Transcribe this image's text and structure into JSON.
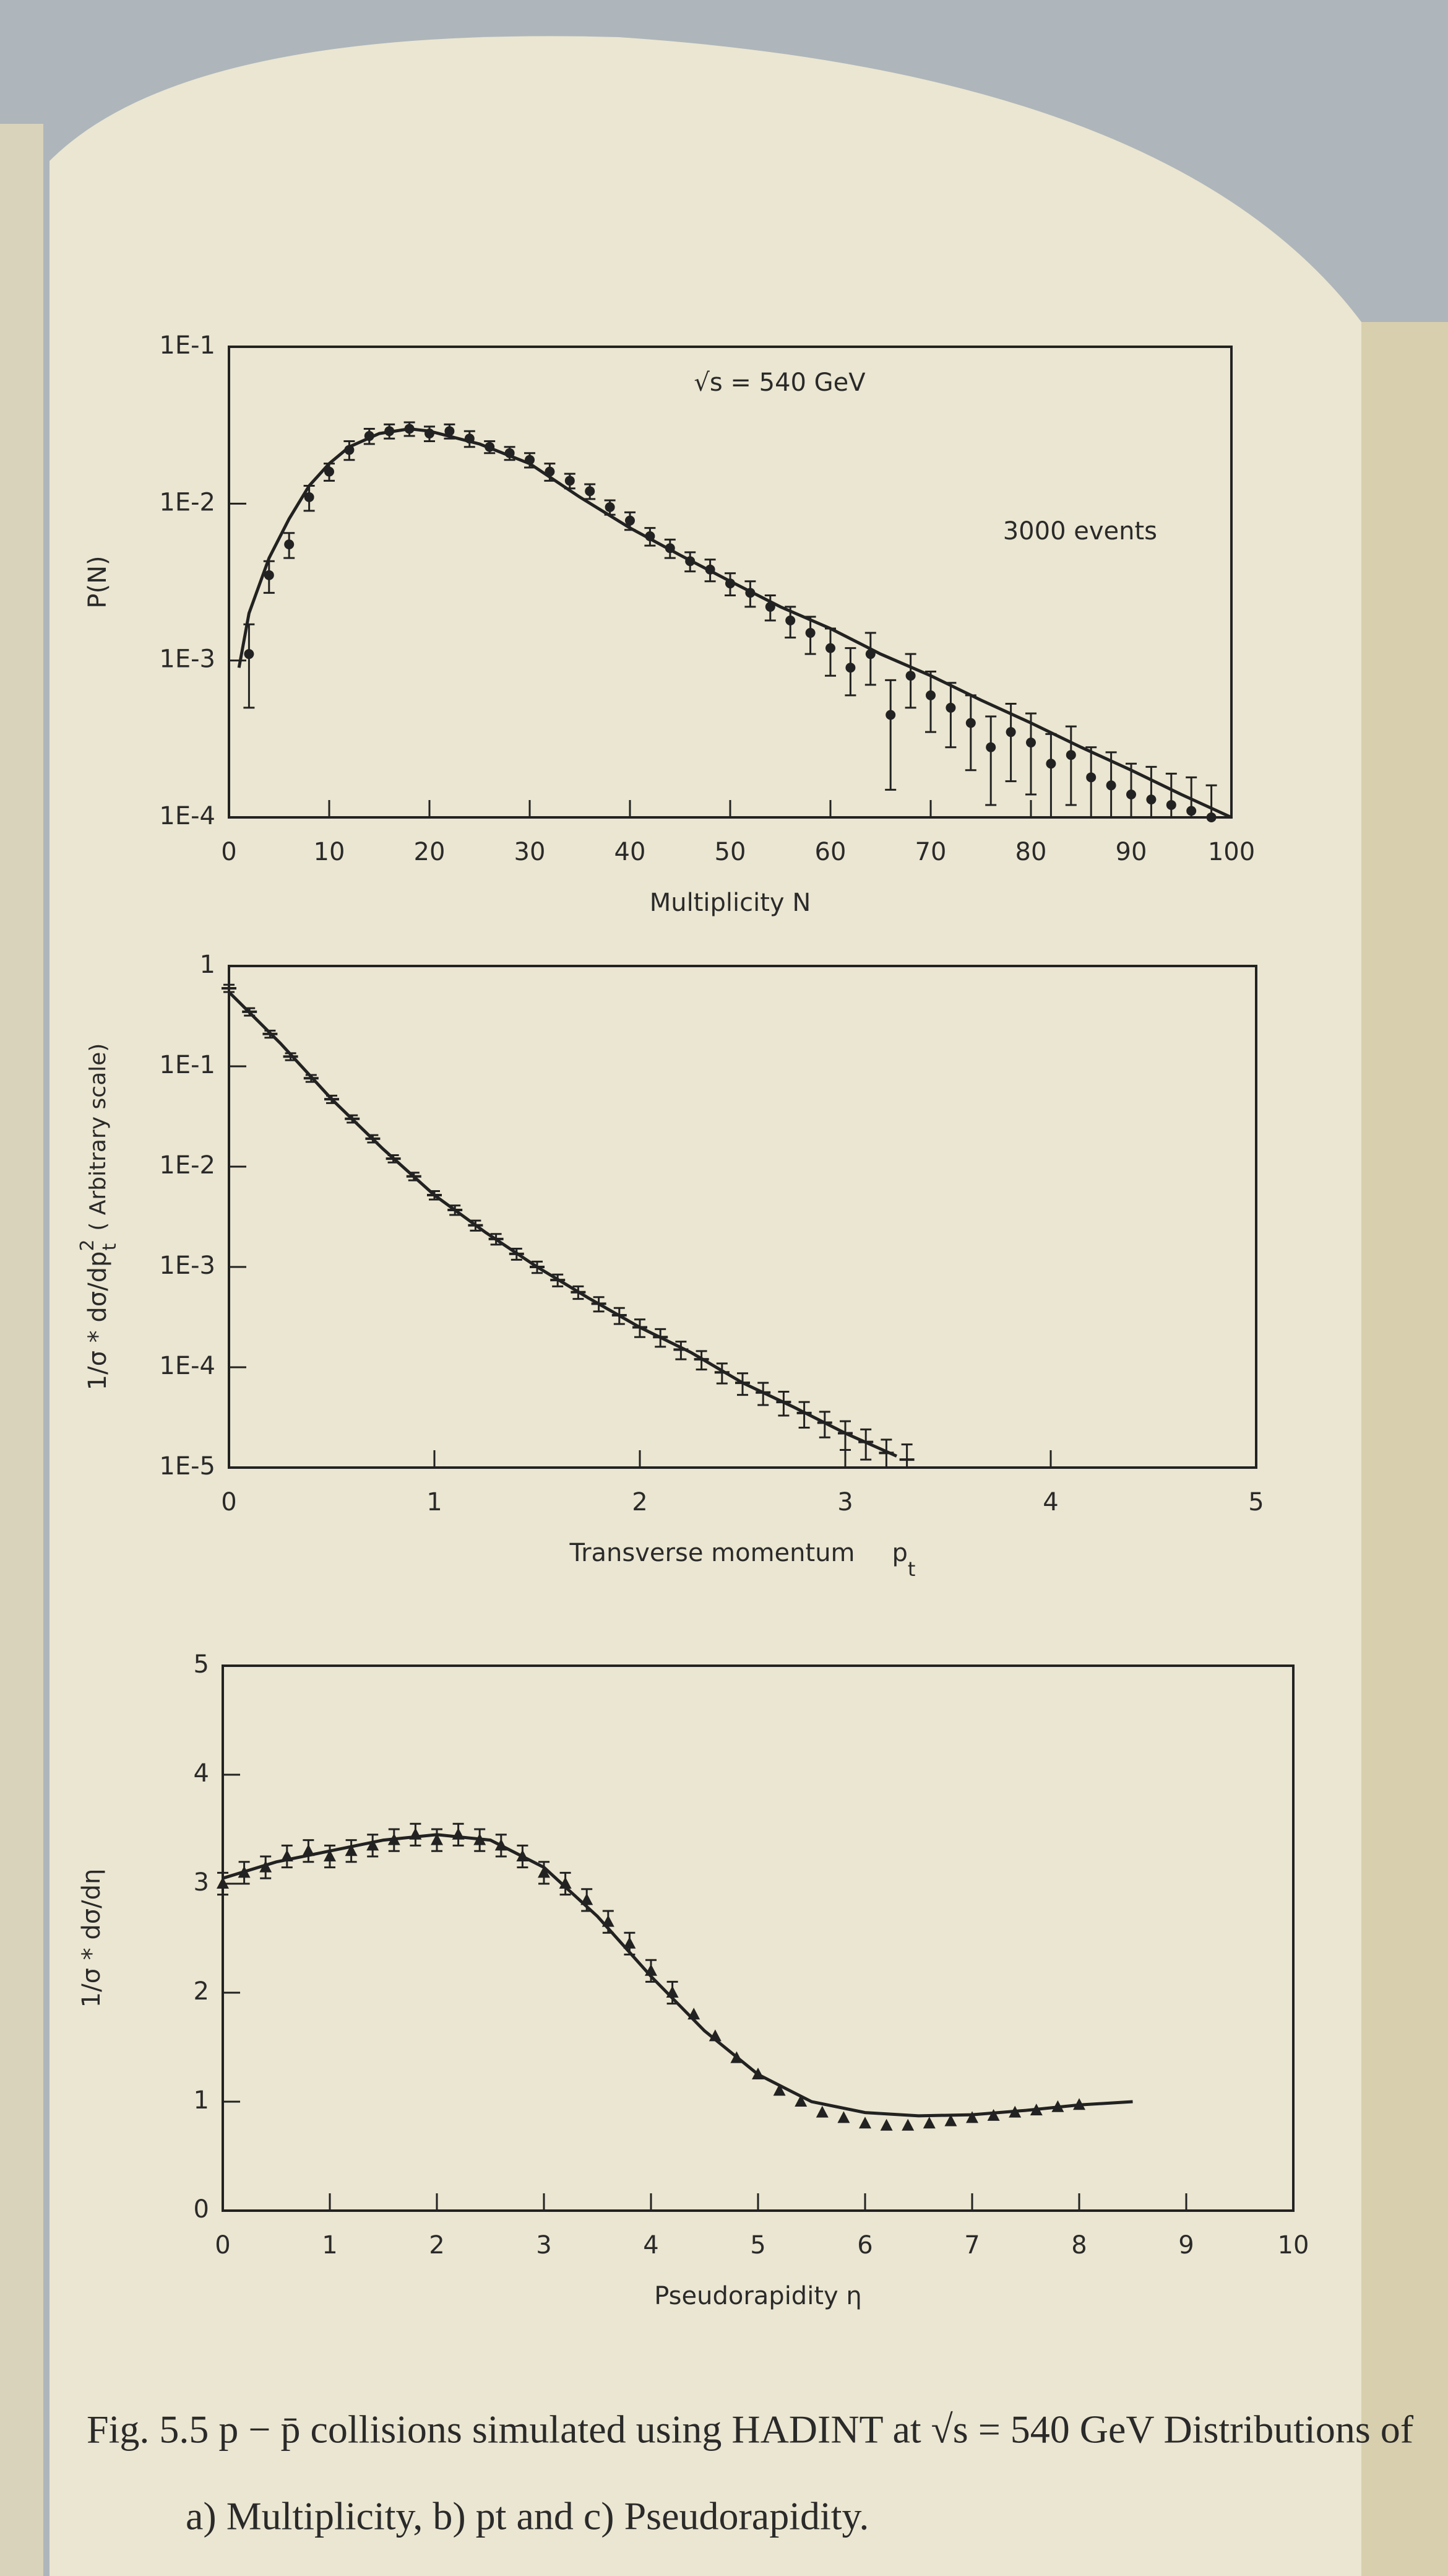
{
  "chart_data": [
    {
      "type": "scatter",
      "log_y": true,
      "title": "√s = 540 GeV",
      "note": "3000 events",
      "x_label": "Multiplicity N",
      "y_label": "P(N)",
      "color": "#222222",
      "marker": "circle",
      "xlim": [
        0,
        100
      ],
      "ylim": [
        0.0001,
        0.1
      ],
      "xticks": [
        0,
        10,
        20,
        30,
        40,
        50,
        60,
        70,
        80,
        90,
        100
      ],
      "yticks": [
        {
          "value": 0.1,
          "label": "1E-1"
        },
        {
          "value": 0.01,
          "label": "1E-2"
        },
        {
          "value": 0.001,
          "label": "1E-3"
        },
        {
          "value": 0.0001,
          "label": "1E-4"
        }
      ],
      "points": {
        "x": [
          2,
          4,
          6,
          8,
          10,
          12,
          14,
          16,
          18,
          20,
          22,
          24,
          26,
          28,
          30,
          32,
          34,
          36,
          38,
          40,
          42,
          44,
          46,
          48,
          50,
          52,
          54,
          56,
          58,
          60,
          62,
          64,
          66,
          68,
          70,
          72,
          74,
          76,
          78,
          80,
          82,
          84,
          86,
          88,
          90,
          92,
          94,
          96,
          98
        ],
        "y": [
          0.0011,
          0.0035,
          0.0055,
          0.011,
          0.016,
          0.022,
          0.027,
          0.029,
          0.03,
          0.028,
          0.029,
          0.026,
          0.023,
          0.021,
          0.019,
          0.016,
          0.014,
          0.012,
          0.0095,
          0.0078,
          0.0062,
          0.0052,
          0.0043,
          0.0038,
          0.0031,
          0.0027,
          0.0022,
          0.0018,
          0.0015,
          0.0012,
          0.0009,
          0.0011,
          0.00045,
          0.0008,
          0.0006,
          0.0005,
          0.0004,
          0.00028,
          0.00035,
          0.0003,
          0.00022,
          0.00025,
          0.00018,
          0.00016,
          0.00014,
          0.00013,
          0.00012,
          0.00011,
          0.0001
        ],
        "errors": [
          0.0006,
          0.0008,
          0.001,
          0.002,
          0.002,
          0.003,
          0.003,
          0.003,
          0.003,
          0.003,
          0.003,
          0.003,
          0.002,
          0.002,
          0.002,
          0.002,
          0.0015,
          0.0013,
          0.001,
          0.001,
          0.0008,
          0.0007,
          0.0006,
          0.0006,
          0.0005,
          0.0005,
          0.0004,
          0.0004,
          0.0004,
          0.0004,
          0.0003,
          0.0004,
          0.0003,
          0.0003,
          0.00025,
          0.00022,
          0.0002,
          0.00016,
          0.00018,
          0.00016,
          0.00012,
          0.00013,
          0.0001,
          0.0001,
          8e-05,
          8e-05,
          7e-05,
          7e-05,
          6e-05
        ]
      },
      "curve": {
        "x": [
          1,
          2,
          4,
          6,
          8,
          10,
          12,
          15,
          18,
          20,
          25,
          30,
          35,
          40,
          45,
          50,
          55,
          60,
          65,
          70,
          75,
          80,
          85,
          90,
          95,
          100
        ],
        "y": [
          0.0009,
          0.002,
          0.0045,
          0.008,
          0.013,
          0.018,
          0.023,
          0.028,
          0.03,
          0.029,
          0.024,
          0.018,
          0.011,
          0.007,
          0.0047,
          0.0032,
          0.0022,
          0.0016,
          0.0011,
          0.0008,
          0.00056,
          0.0004,
          0.00028,
          0.0002,
          0.00014,
          0.0001
        ]
      }
    },
    {
      "type": "scatter",
      "log_y": true,
      "x_label": "Transverse momentum",
      "x_label_symbol": "p",
      "x_label_subscript": "t",
      "y_label": "1/σ * dσ/dp",
      "y_label_superscript": "2",
      "y_label_subscript": "t",
      "y_label_note": "( Arbitrary scale)",
      "color": "#222222",
      "marker": "bar",
      "xlim": [
        0,
        5
      ],
      "ylim": [
        1e-05,
        1
      ],
      "xticks": [
        0,
        1,
        2,
        3,
        4,
        5
      ],
      "yticks": [
        1,
        {
          "value": 0.1,
          "label": "1E-1"
        },
        {
          "value": 0.01,
          "label": "1E-2"
        },
        {
          "value": 0.001,
          "label": "1E-3"
        },
        {
          "value": 0.0001,
          "label": "1E-4"
        },
        {
          "value": 1e-05,
          "label": "1E-5"
        }
      ],
      "points": {
        "x": [
          0,
          0.1,
          0.2,
          0.3,
          0.4,
          0.5,
          0.6,
          0.7,
          0.8,
          0.9,
          1.0,
          1.1,
          1.2,
          1.3,
          1.4,
          1.5,
          1.6,
          1.7,
          1.8,
          1.9,
          2.0,
          2.1,
          2.2,
          2.3,
          2.4,
          2.5,
          2.6,
          2.7,
          2.8,
          2.9,
          3.0,
          3.1,
          3.2,
          3.3
        ],
        "y": [
          0.6,
          0.35,
          0.21,
          0.125,
          0.076,
          0.047,
          0.03,
          0.019,
          0.012,
          0.008,
          0.0052,
          0.0037,
          0.0026,
          0.0019,
          0.00135,
          0.001,
          0.00074,
          0.00056,
          0.00043,
          0.00033,
          0.00025,
          0.0002,
          0.00015,
          0.00012,
          8.9e-05,
          7e-05,
          5.6e-05,
          4.5e-05,
          3.5e-05,
          2.8e-05,
          2.2e-05,
          1.8e-05,
          1.4e-05,
          1.2e-05
        ],
        "errors": [
          0.05,
          0.03,
          0.017,
          0.01,
          0.006,
          0.004,
          0.0025,
          0.0016,
          0.001,
          0.0007,
          0.0005,
          0.0004,
          0.0003,
          0.00023,
          0.00017,
          0.00013,
          0.0001,
          8e-05,
          7e-05,
          6e-05,
          5e-05,
          4e-05,
          3e-05,
          2.5e-05,
          2e-05,
          1.7e-05,
          1.4e-05,
          1.2e-05,
          1e-05,
          8e-06,
          7e-06,
          6e-06,
          5e-06,
          5e-06
        ]
      },
      "curve": {
        "x": [
          0,
          0.25,
          0.5,
          0.75,
          1,
          1.25,
          1.5,
          1.75,
          2,
          2.25,
          2.5,
          2.75,
          3,
          3.25
        ],
        "y": [
          0.55,
          0.17,
          0.047,
          0.015,
          0.0052,
          0.0022,
          0.001,
          0.00049,
          0.00025,
          0.00014,
          7e-05,
          4e-05,
          2.2e-05,
          1.3e-05
        ]
      }
    },
    {
      "type": "scatter",
      "log_y": false,
      "x_label": "Pseudorapidity  η",
      "y_label": "1/σ * dσ/dη",
      "color": "#222222",
      "marker": "triangle",
      "xlim": [
        0,
        10
      ],
      "ylim": [
        0,
        5
      ],
      "xticks": [
        0,
        1,
        2,
        3,
        4,
        5,
        6,
        7,
        8,
        9,
        10
      ],
      "yticks": [
        0,
        1,
        2,
        3,
        4,
        5
      ],
      "points": {
        "x": [
          0,
          0.2,
          0.4,
          0.6,
          0.8,
          1.0,
          1.2,
          1.4,
          1.6,
          1.8,
          2.0,
          2.2,
          2.4,
          2.6,
          2.8,
          3.0,
          3.2,
          3.4,
          3.6,
          3.8,
          4.0,
          4.2,
          4.4,
          4.6,
          4.8,
          5.0,
          5.2,
          5.4,
          5.6,
          5.8,
          6.0,
          6.2,
          6.4,
          6.6,
          6.8,
          7.0,
          7.2,
          7.4,
          7.6,
          7.8,
          8.0
        ],
        "y": [
          3.0,
          3.1,
          3.15,
          3.25,
          3.3,
          3.25,
          3.3,
          3.35,
          3.4,
          3.45,
          3.4,
          3.45,
          3.4,
          3.35,
          3.25,
          3.1,
          3.0,
          2.85,
          2.65,
          2.45,
          2.2,
          2.0,
          1.8,
          1.6,
          1.4,
          1.25,
          1.1,
          1.0,
          0.9,
          0.85,
          0.8,
          0.78,
          0.78,
          0.8,
          0.82,
          0.85,
          0.87,
          0.9,
          0.92,
          0.95,
          0.97
        ],
        "errors": [
          0.1,
          0.1,
          0.1,
          0.1,
          0.1,
          0.1,
          0.1,
          0.1,
          0.1,
          0.1,
          0.1,
          0.1,
          0.1,
          0.1,
          0.1,
          0.1,
          0.1,
          0.1,
          0.1,
          0.1,
          0.1,
          0.1,
          null,
          null,
          null,
          null,
          null,
          null,
          null,
          null,
          null,
          null,
          null,
          null,
          null,
          null,
          null,
          null,
          null,
          null,
          null
        ]
      },
      "curve": {
        "x": [
          0,
          0.5,
          1,
          1.5,
          2,
          2.5,
          3,
          3.5,
          4,
          4.5,
          5,
          5.5,
          6,
          6.5,
          7,
          7.5,
          8,
          8.5
        ],
        "y": [
          3.05,
          3.2,
          3.3,
          3.4,
          3.45,
          3.4,
          3.15,
          2.7,
          2.15,
          1.65,
          1.25,
          1.0,
          0.9,
          0.87,
          0.88,
          0.92,
          0.97,
          1.0
        ]
      }
    }
  ],
  "caption": {
    "line1": "Fig. 5.5  p − p̄ collisions simulated using HADINT at √s = 540 GeV Distributions of",
    "line2": "a) Multiplicity,    b) pt    and    c) Pseudorapidity."
  }
}
